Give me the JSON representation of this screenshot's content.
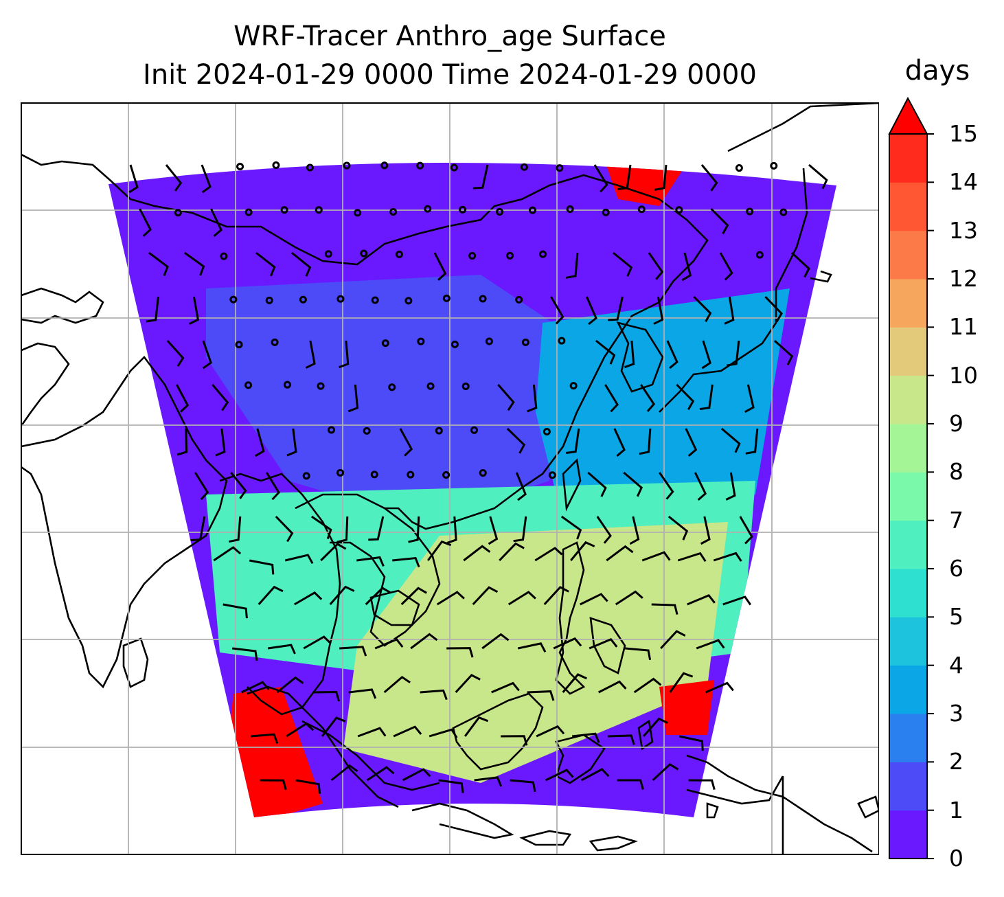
{
  "title": {
    "line1": "WRF-Tracer Anthro_age Surface",
    "line2": "Init 2024-01-29 0000 Time 2024-01-29 0000"
  },
  "colorbar": {
    "unit": "days",
    "min": 0,
    "max": 15,
    "extend": "max",
    "tick_labels": [
      "0",
      "1",
      "2",
      "3",
      "4",
      "5",
      "6",
      "7",
      "8",
      "9",
      "10",
      "11",
      "12",
      "13",
      "14",
      "15"
    ],
    "colors": [
      "#6a19ff",
      "#4d4af7",
      "#2b80f0",
      "#0aa6e6",
      "#1dc3dc",
      "#2ee0cf",
      "#4fefbf",
      "#7af9aa",
      "#a3f596",
      "#c8e68a",
      "#e3c97a",
      "#f7a65e",
      "#fb7a47",
      "#ff5634",
      "#ff2b1c",
      "#ff0000"
    ]
  },
  "map": {
    "gridlines": true,
    "features": [
      "coastlines",
      "country borders",
      "wind barbs",
      "calm-wind circles"
    ],
    "regions": [
      {
        "name": "north-low-age",
        "level": 0.6,
        "color": "#6a19ff"
      },
      {
        "name": "central-china",
        "level": 0.8,
        "color": "#4d4af7"
      },
      {
        "name": "east-china-sea",
        "level": 3.5,
        "color": "#0aa6e6"
      },
      {
        "name": "south-china-sea",
        "level": 6.5,
        "color": "#4fefbf"
      },
      {
        "name": "western-pacific",
        "level": 9.5,
        "color": "#c8e68a"
      },
      {
        "name": "indian-ocean-sw",
        "level": 15,
        "color": "#ff0000"
      },
      {
        "name": "pacific-east-edge",
        "level": 15,
        "color": "#ff0000"
      }
    ]
  }
}
